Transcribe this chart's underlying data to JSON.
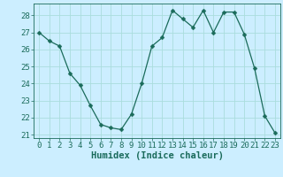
{
  "x": [
    0,
    1,
    2,
    3,
    4,
    5,
    6,
    7,
    8,
    9,
    10,
    11,
    12,
    13,
    14,
    15,
    16,
    17,
    18,
    19,
    20,
    21,
    22,
    23
  ],
  "y": [
    27.0,
    26.5,
    26.2,
    24.6,
    23.9,
    22.7,
    21.6,
    21.4,
    21.3,
    22.2,
    24.0,
    26.2,
    26.7,
    28.3,
    27.8,
    27.3,
    28.3,
    27.0,
    28.2,
    28.2,
    26.9,
    24.9,
    22.1,
    21.1
  ],
  "xlabel": "Humidex (Indice chaleur)",
  "ylabel": "",
  "ylim": [
    20.8,
    28.7
  ],
  "xlim": [
    -0.5,
    23.5
  ],
  "yticks": [
    21,
    22,
    23,
    24,
    25,
    26,
    27,
    28
  ],
  "xticks": [
    0,
    1,
    2,
    3,
    4,
    5,
    6,
    7,
    8,
    9,
    10,
    11,
    12,
    13,
    14,
    15,
    16,
    17,
    18,
    19,
    20,
    21,
    22,
    23
  ],
  "line_color": "#1a6b5a",
  "marker": "D",
  "marker_size": 2.5,
  "bg_color": "#cceeff",
  "grid_color": "#aadddd",
  "tick_label_fontsize": 6.5,
  "xlabel_fontsize": 7.5
}
